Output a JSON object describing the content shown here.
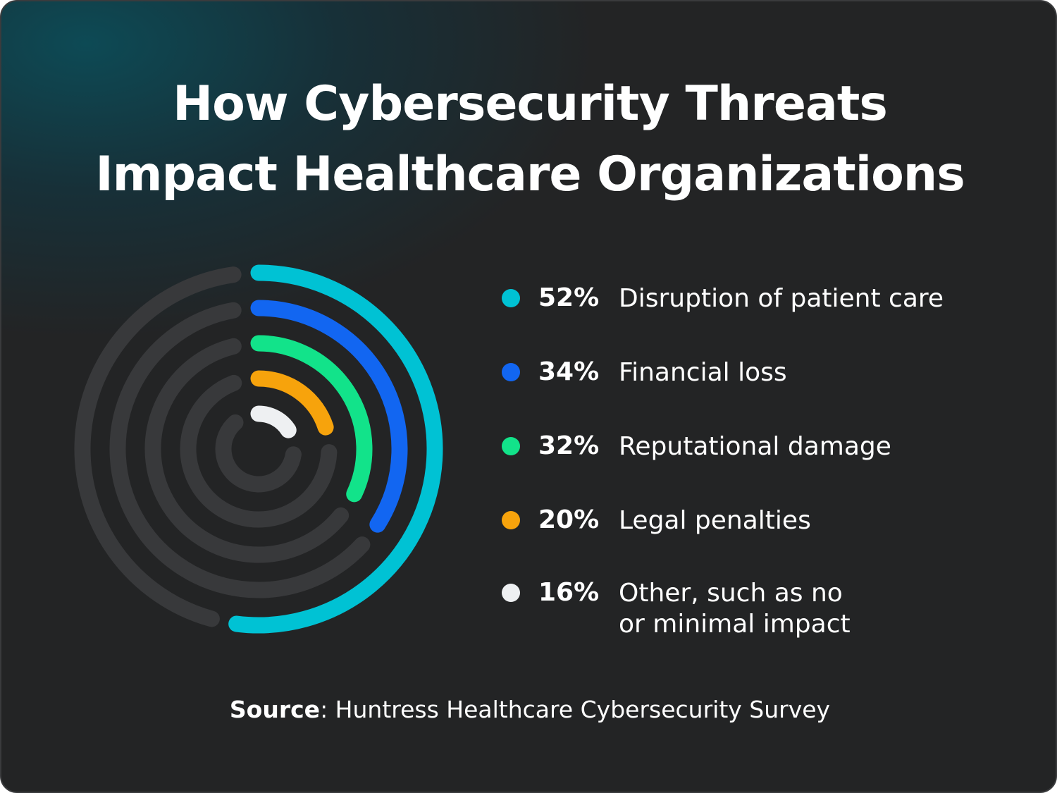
{
  "chart_data": {
    "type": "radial_bar",
    "title": "How Cybersecurity Threats\nImpact Healthcare Organizations",
    "categories": [
      "Disruption of patient care",
      "Financial loss",
      "Reputational damage",
      "Legal penalties",
      "Other, such as no\nor minimal impact"
    ],
    "values": [
      52,
      34,
      32,
      20,
      16
    ],
    "value_labels": [
      "52%",
      "34%",
      "32%",
      "20%",
      "16%"
    ],
    "colors": [
      "#00c2d4",
      "#1266f1",
      "#12e38a",
      "#f7a30c",
      "#eef0f2"
    ],
    "source": {
      "label": "Source",
      "text": ": Huntress Healthcare Cybersecurity Survey"
    }
  }
}
